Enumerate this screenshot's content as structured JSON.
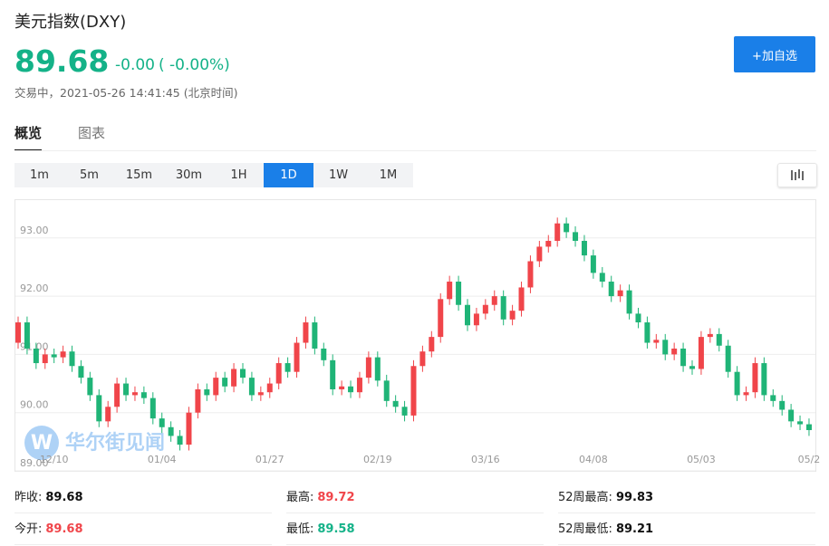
{
  "header": {
    "title": "美元指数(DXY)",
    "price": 89.68,
    "change": "-0.00",
    "change_pct": "( -0.00%)",
    "status": "交易中，2021-05-26 14:41:45 (北京时间)",
    "button": "+加自选"
  },
  "tabs": [
    "概览",
    "图表"
  ],
  "periods": [
    "1m",
    "5m",
    "15m",
    "30m",
    "1H",
    "1D",
    "1W",
    "1M"
  ],
  "active_period": "1D",
  "watermark": "华尔街见闻",
  "chart_data": {
    "type": "candlestick",
    "up_color": "#f0454a",
    "down_color": "#1fb477",
    "grid": true,
    "ylim": [
      89,
      93.65
    ],
    "yticks": [
      {
        "value": 89,
        "label": "89.00"
      },
      {
        "value": 90,
        "label": "90.00"
      },
      {
        "value": 91,
        "label": "91.00"
      },
      {
        "value": 92,
        "label": "92.00"
      },
      {
        "value": 93,
        "label": "93.00"
      }
    ],
    "categories": [
      null,
      null,
      null,
      null,
      "12/10",
      null,
      null,
      null,
      null,
      null,
      null,
      null,
      null,
      null,
      null,
      null,
      "01/04",
      null,
      null,
      null,
      null,
      null,
      null,
      null,
      null,
      null,
      null,
      null,
      "01/27",
      null,
      null,
      null,
      null,
      null,
      null,
      null,
      null,
      null,
      null,
      null,
      "02/19",
      null,
      null,
      null,
      null,
      null,
      null,
      null,
      null,
      null,
      null,
      null,
      "03/16",
      null,
      null,
      null,
      null,
      null,
      null,
      null,
      null,
      null,
      null,
      null,
      "04/08",
      null,
      null,
      null,
      null,
      null,
      null,
      null,
      null,
      null,
      null,
      null,
      "05/03",
      null,
      null,
      null,
      null,
      null,
      null,
      null,
      null,
      null,
      null,
      null,
      "05/2"
    ],
    "open": [
      91.2,
      91.55,
      91.1,
      90.85,
      91.0,
      90.95,
      91.05,
      90.8,
      90.6,
      90.3,
      89.85,
      90.1,
      90.5,
      90.3,
      90.35,
      90.25,
      89.9,
      89.75,
      89.6,
      89.45,
      90.0,
      90.4,
      90.3,
      90.6,
      90.45,
      90.75,
      90.6,
      90.3,
      90.35,
      90.5,
      90.85,
      90.7,
      91.2,
      91.55,
      91.1,
      90.9,
      90.4,
      90.45,
      90.35,
      90.6,
      90.95,
      90.55,
      90.2,
      90.1,
      89.95,
      90.8,
      91.05,
      91.3,
      91.95,
      92.25,
      91.85,
      91.5,
      91.7,
      91.85,
      92.0,
      91.6,
      91.75,
      92.15,
      92.6,
      92.85,
      92.95,
      93.25,
      93.1,
      92.95,
      92.7,
      92.4,
      92.25,
      92.0,
      92.1,
      91.7,
      91.55,
      91.2,
      91.25,
      91.0,
      91.1,
      90.8,
      90.75,
      91.3,
      91.35,
      91.15,
      90.7,
      90.3,
      90.35,
      90.85,
      90.3,
      90.2,
      90.05,
      89.85,
      89.8
    ],
    "high": [
      91.65,
      91.65,
      91.2,
      91.1,
      91.1,
      91.15,
      91.15,
      90.9,
      90.7,
      90.4,
      90.2,
      90.6,
      90.6,
      90.45,
      90.45,
      90.35,
      90.0,
      89.85,
      89.7,
      90.1,
      90.5,
      90.5,
      90.7,
      90.7,
      90.85,
      90.85,
      90.7,
      90.45,
      90.6,
      90.95,
      90.95,
      91.3,
      91.65,
      91.65,
      91.2,
      91.0,
      90.55,
      90.55,
      90.7,
      91.05,
      91.05,
      90.65,
      90.3,
      90.2,
      90.9,
      91.15,
      91.4,
      92.05,
      92.35,
      92.35,
      91.95,
      91.8,
      91.95,
      92.1,
      92.1,
      91.85,
      92.25,
      92.7,
      92.95,
      93.05,
      93.35,
      93.35,
      93.2,
      93.05,
      92.8,
      92.5,
      92.35,
      92.2,
      92.2,
      91.8,
      91.65,
      91.35,
      91.35,
      91.2,
      91.2,
      90.9,
      91.4,
      91.45,
      91.45,
      91.25,
      90.8,
      90.45,
      90.95,
      90.95,
      90.4,
      90.3,
      90.15,
      89.95,
      89.9
    ],
    "low": [
      91.1,
      91.0,
      90.75,
      90.75,
      90.85,
      90.85,
      90.7,
      90.5,
      90.2,
      89.75,
      89.75,
      90.0,
      90.2,
      90.2,
      90.15,
      89.8,
      89.65,
      89.5,
      89.35,
      89.35,
      89.9,
      90.2,
      90.2,
      90.35,
      90.35,
      90.5,
      90.2,
      90.2,
      90.25,
      90.4,
      90.6,
      90.6,
      91.1,
      91.0,
      90.8,
      90.3,
      90.3,
      90.25,
      90.25,
      90.5,
      90.45,
      90.1,
      90.0,
      89.85,
      89.85,
      90.7,
      90.95,
      91.2,
      91.85,
      91.75,
      91.4,
      91.4,
      91.6,
      91.75,
      91.5,
      91.5,
      91.65,
      92.05,
      92.5,
      92.75,
      92.85,
      93.0,
      92.85,
      92.6,
      92.3,
      92.15,
      91.9,
      91.9,
      91.6,
      91.45,
      91.1,
      91.1,
      90.9,
      90.9,
      90.7,
      90.65,
      90.65,
      91.2,
      91.05,
      90.6,
      90.2,
      90.2,
      90.25,
      90.2,
      90.1,
      89.95,
      89.75,
      89.7,
      89.6
    ],
    "close": [
      91.55,
      91.1,
      90.85,
      91.0,
      90.95,
      91.05,
      90.8,
      90.6,
      90.3,
      89.85,
      90.1,
      90.5,
      90.3,
      90.35,
      90.25,
      89.9,
      89.75,
      89.6,
      89.45,
      90.0,
      90.4,
      90.3,
      90.6,
      90.45,
      90.75,
      90.6,
      90.3,
      90.35,
      90.5,
      90.85,
      90.7,
      91.2,
      91.55,
      91.1,
      90.9,
      90.4,
      90.45,
      90.35,
      90.6,
      90.95,
      90.55,
      90.2,
      90.1,
      89.95,
      90.8,
      91.05,
      91.3,
      91.95,
      92.25,
      91.85,
      91.5,
      91.7,
      91.85,
      92.0,
      91.6,
      91.75,
      92.15,
      92.6,
      92.85,
      92.95,
      93.25,
      93.1,
      92.95,
      92.7,
      92.4,
      92.25,
      92.0,
      92.1,
      91.7,
      91.55,
      91.2,
      91.25,
      91.0,
      91.1,
      90.8,
      90.75,
      91.3,
      91.35,
      91.15,
      90.7,
      90.3,
      90.35,
      90.85,
      90.3,
      90.2,
      90.05,
      89.85,
      89.8,
      89.7
    ]
  },
  "stats": [
    [
      {
        "label": "昨收:",
        "value": 89.68,
        "tone": "plain"
      },
      {
        "label": "最高:",
        "value": 89.72,
        "tone": "up"
      },
      {
        "label": "52周最高:",
        "value": 99.83,
        "tone": "plain"
      }
    ],
    [
      {
        "label": "今开:",
        "value": 89.68,
        "tone": "up"
      },
      {
        "label": "最低:",
        "value": 89.58,
        "tone": "down"
      },
      {
        "label": "52周最低:",
        "value": 89.21,
        "tone": "plain"
      }
    ]
  ]
}
